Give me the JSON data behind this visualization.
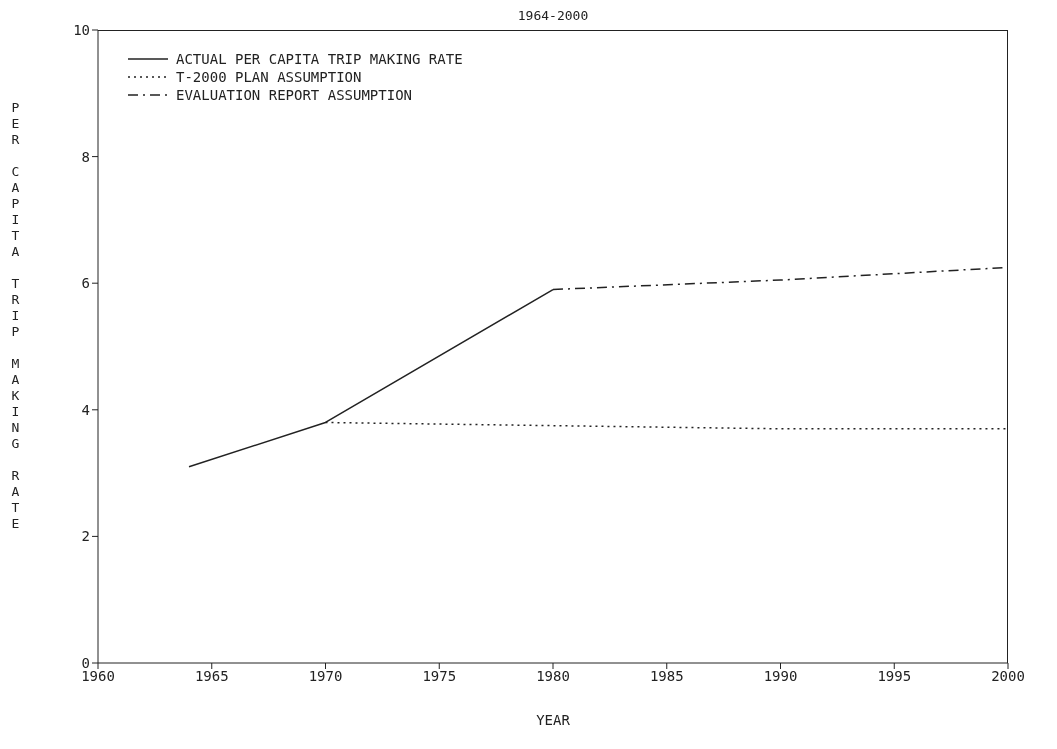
{
  "chart_data": {
    "type": "line",
    "title": "1964-2000",
    "xlabel": "YEAR",
    "ylabel": "PER CAPITA TRIP MAKING RATE",
    "xlim": [
      1960,
      2000
    ],
    "xticks": [
      1960,
      1965,
      1970,
      1975,
      1980,
      1985,
      1990,
      1995,
      2000
    ],
    "ylim": [
      0,
      10
    ],
    "yticks": [
      0,
      2,
      4,
      6,
      8,
      10
    ],
    "legend": "top left",
    "marker": "none",
    "series": [
      {
        "name": "ACTUAL PER CAPITA TRIP MAKING RATE",
        "color": "#222222",
        "line_style": "solid",
        "x": [
          1964,
          1970,
          1980
        ],
        "values": [
          3.1,
          3.8,
          5.9
        ]
      },
      {
        "name": "T-2000 PLAN ASSUMPTION",
        "color": "#222222",
        "line_style": "dotted",
        "x": [
          1970,
          1980,
          1990,
          2000
        ],
        "values": [
          3.8,
          3.75,
          3.7,
          3.7
        ]
      },
      {
        "name": "EVALUATION REPORT ASSUMPTION",
        "color": "#222222",
        "line_style": "dashed",
        "x": [
          1980,
          1990,
          2000
        ],
        "values": [
          5.9,
          6.05,
          6.25
        ]
      }
    ]
  }
}
